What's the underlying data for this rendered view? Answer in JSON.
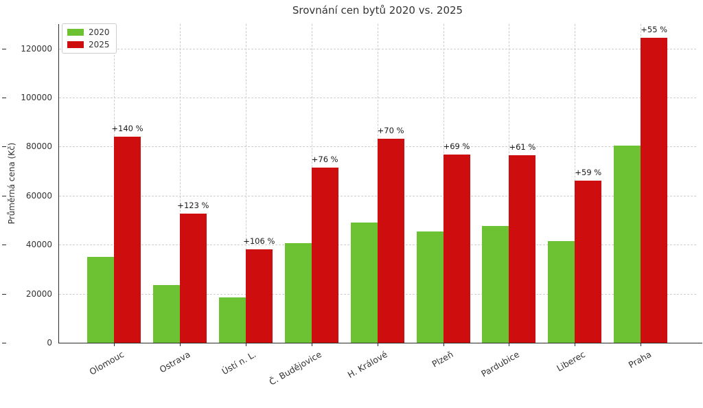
{
  "chart_data": {
    "type": "bar",
    "title": "Srovnání cen bytů 2020 vs. 2025",
    "xlabel": "",
    "ylabel": "Průměrná cena (Kč)",
    "categories": [
      "Olomouc",
      "Ostrava",
      "Ústí n. L.",
      "Č. Budějovice",
      "H. Králové",
      "Plzeň",
      "Pardubice",
      "Liberec",
      "Praha"
    ],
    "series": [
      {
        "name": "2020",
        "color": "#6CC232",
        "values": [
          35000,
          23600,
          18500,
          40600,
          49000,
          45500,
          47500,
          41500,
          80300
        ]
      },
      {
        "name": "2025",
        "color": "#CE0E0E",
        "values": [
          84000,
          52600,
          38100,
          71500,
          83300,
          76900,
          76500,
          66000,
          124500
        ]
      }
    ],
    "annotations": [
      "+140 %",
      "+123 %",
      "+106 %",
      "+76 %",
      "+70 %",
      "+69 %",
      "+61 %",
      "+59 %",
      "+55 %"
    ],
    "yticks": [
      0,
      20000,
      40000,
      60000,
      80000,
      100000,
      120000
    ],
    "ylim": [
      0,
      130000
    ],
    "grid": true,
    "grid_style": "dashed",
    "legend_position": "upper left",
    "background": "#ffffff",
    "axis_color": "#2b2b2b",
    "grid_color": "#cdcdcd",
    "text_color": "#333333"
  }
}
